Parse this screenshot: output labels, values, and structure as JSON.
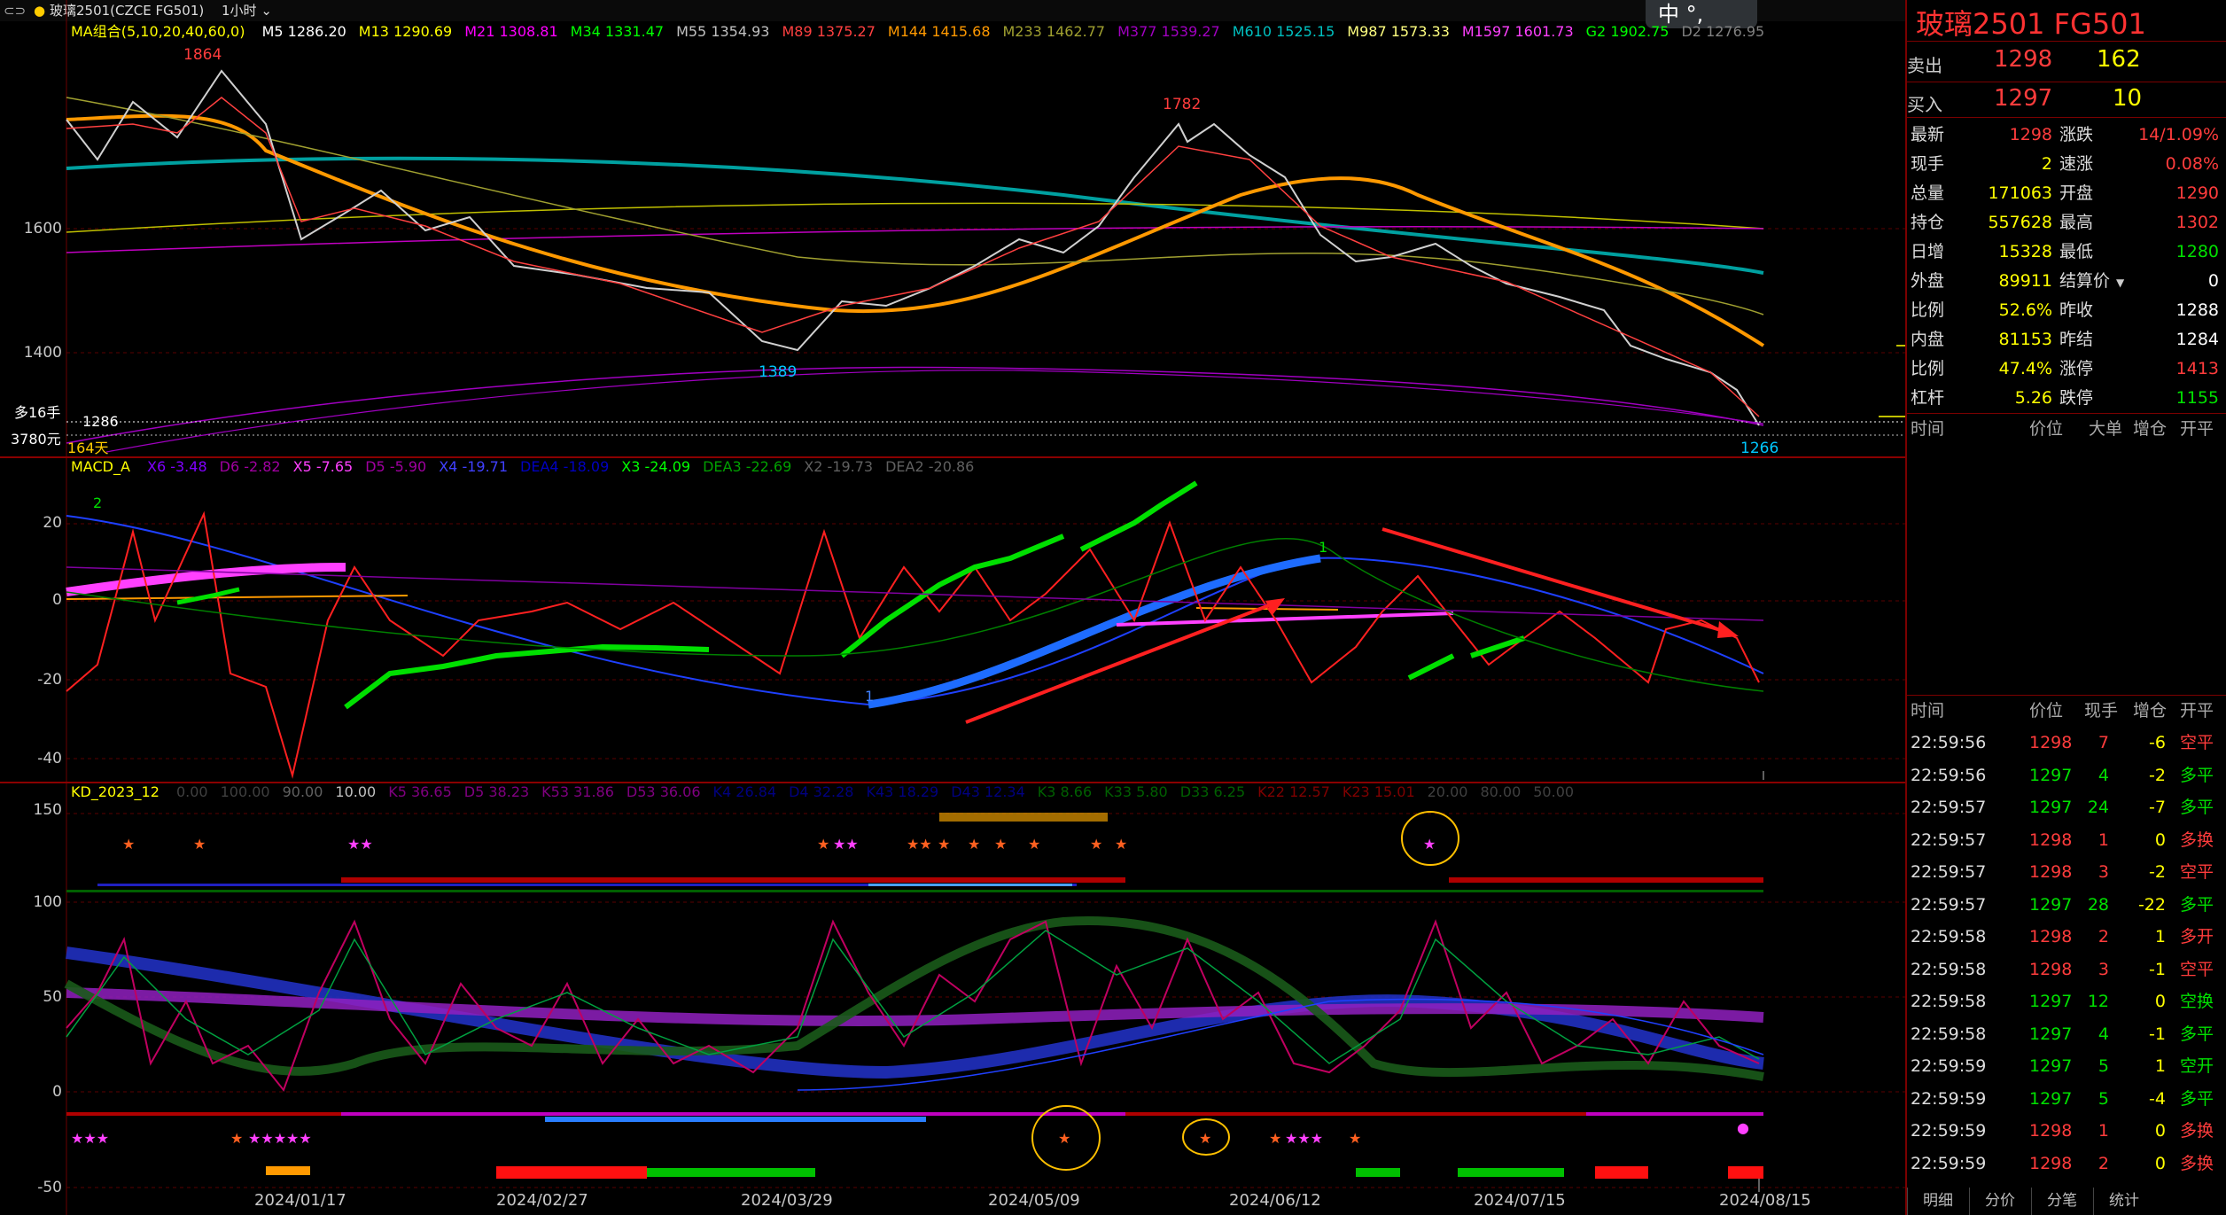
{
  "topbar": {
    "symbol_full": "玻璃2501(CZCE FG501)",
    "period": "1小时",
    "ime_label": "中 °,"
  },
  "ma_legend": {
    "name": "MA组合(5,10,20,40,60,0)",
    "items": [
      {
        "label": "M5 1286.20",
        "color": "#ffffff"
      },
      {
        "label": "M13 1290.69",
        "color": "#ffff00"
      },
      {
        "label": "M21 1308.81",
        "color": "#ff00ff"
      },
      {
        "label": "M34 1331.47",
        "color": "#00ff00"
      },
      {
        "label": "M55 1354.93",
        "color": "#c0c0c0"
      },
      {
        "label": "M89 1375.27",
        "color": "#ff4040"
      },
      {
        "label": "M144 1415.68",
        "color": "#ff9900"
      },
      {
        "label": "M233 1462.77",
        "color": "#a0a030"
      },
      {
        "label": "M377 1539.27",
        "color": "#a000c0"
      },
      {
        "label": "M610 1525.15",
        "color": "#00c0c0"
      },
      {
        "label": "M987 1573.33",
        "color": "#ffff80"
      },
      {
        "label": "M1597 1601.73",
        "color": "#ff40ff"
      },
      {
        "label": "G2 1902.75",
        "color": "#00ff00"
      },
      {
        "label": "D2 1276.95",
        "color": "#808080"
      }
    ]
  },
  "price_panel": {
    "y_ticks": [
      "1600",
      "1400"
    ],
    "annotations": [
      "1864",
      "1782",
      "1389",
      "1266"
    ],
    "last_price_label": "1286",
    "position_label": "多16手",
    "pnl_label": "3780元",
    "days_label": "164天"
  },
  "macd_legend": {
    "name": "MACD_A",
    "items": [
      {
        "label": "X6 -3.48",
        "color": "#8000ff"
      },
      {
        "label": "D6 -2.82",
        "color": "#a000a0"
      },
      {
        "label": "X5 -7.65",
        "color": "#ff40ff"
      },
      {
        "label": "D5 -5.90",
        "color": "#a000a0"
      },
      {
        "label": "X4 -19.71",
        "color": "#4040ff"
      },
      {
        "label": "DEA4 -18.09",
        "color": "#0000c0"
      },
      {
        "label": "X3 -24.09",
        "color": "#00ff00"
      },
      {
        "label": "DEA3 -22.69",
        "color": "#00a000"
      },
      {
        "label": "X2 -19.73",
        "color": "#606060"
      },
      {
        "label": "DEA2 -20.86",
        "color": "#606060"
      }
    ],
    "y_ticks": [
      "20",
      "0",
      "-20",
      "-40"
    ],
    "marks": [
      "2",
      "1",
      "1"
    ]
  },
  "kd_legend": {
    "name": "KD_2023_12",
    "items": [
      {
        "label": "0.00",
        "color": "#404040"
      },
      {
        "label": "100.00",
        "color": "#404040"
      },
      {
        "label": "90.00",
        "color": "#606060"
      },
      {
        "label": "10.00",
        "color": "#c0c0c0"
      },
      {
        "label": "K5 36.65",
        "color": "#800080"
      },
      {
        "label": "D5 38.23",
        "color": "#800080"
      },
      {
        "label": "K53 31.86",
        "color": "#800080"
      },
      {
        "label": "D53 36.06",
        "color": "#800080"
      },
      {
        "label": "K4 26.84",
        "color": "#000080"
      },
      {
        "label": "D4 32.28",
        "color": "#000080"
      },
      {
        "label": "K43 18.29",
        "color": "#000080"
      },
      {
        "label": "D43 12.34",
        "color": "#000080"
      },
      {
        "label": "K3 8.66",
        "color": "#006000"
      },
      {
        "label": "K33 5.80",
        "color": "#006000"
      },
      {
        "label": "D33 6.25",
        "color": "#006000"
      },
      {
        "label": "K22 12.57",
        "color": "#800000"
      },
      {
        "label": "K23 15.01",
        "color": "#800000"
      },
      {
        "label": "20.00",
        "color": "#404040"
      },
      {
        "label": "80.00",
        "color": "#404040"
      },
      {
        "label": "50.00",
        "color": "#404040"
      }
    ],
    "y_ticks": [
      "150",
      "100",
      "50",
      "0",
      "-50"
    ]
  },
  "x_axis": [
    "2024/01/17",
    "2024/02/27",
    "2024/03/29",
    "2024/05/09",
    "2024/06/12",
    "2024/07/15",
    "2024/08/15"
  ],
  "quote": {
    "title": "玻璃2501  FG501",
    "sell_label": "卖出",
    "sell_price": "1298",
    "sell_vol": "162",
    "buy_label": "买入",
    "buy_price": "1297",
    "buy_vol": "10",
    "rows": [
      {
        "l1": "最新",
        "v1": "1298",
        "c1": "#ff3c3c",
        "l2": "涨跌",
        "v2": "14/1.09%",
        "c2": "#ff3c3c"
      },
      {
        "l1": "现手",
        "v1": "2",
        "c1": "#ffff00",
        "l2": "速涨",
        "v2": "0.08%",
        "c2": "#ff3c3c"
      },
      {
        "l1": "总量",
        "v1": "171063",
        "c1": "#ffff00",
        "l2": "开盘",
        "v2": "1290",
        "c2": "#ff3c3c"
      },
      {
        "l1": "持仓",
        "v1": "557628",
        "c1": "#ffff00",
        "l2": "最高",
        "v2": "1302",
        "c2": "#ff3c3c"
      },
      {
        "l1": "日增",
        "v1": "15328",
        "c1": "#ffff00",
        "l2": "最低",
        "v2": "1280",
        "c2": "#00e000"
      },
      {
        "l1": "外盘",
        "v1": "89911",
        "c1": "#ffff00",
        "l2": "结算价",
        "v2": "0",
        "c2": "#ffffff"
      },
      {
        "l1": "比例",
        "v1": "52.6%",
        "c1": "#ffff00",
        "l2": "昨收",
        "v2": "1288",
        "c2": "#ffffff"
      },
      {
        "l1": "内盘",
        "v1": "81153",
        "c1": "#ffff00",
        "l2": "昨结",
        "v2": "1284",
        "c2": "#ffffff"
      },
      {
        "l1": "比例",
        "v1": "47.4%",
        "c1": "#ffff00",
        "l2": "涨停",
        "v2": "1413",
        "c2": "#ff3c3c"
      },
      {
        "l1": "杠杆",
        "v1": "5.26",
        "c1": "#ffff00",
        "l2": "跌停",
        "v2": "1155",
        "c2": "#00e000"
      }
    ]
  },
  "bigorder_header": {
    "time": "时间",
    "price": "价位",
    "big": "大单",
    "inc": "增仓",
    "oc": "开平"
  },
  "tick_header": {
    "time": "时间",
    "price": "价位",
    "vol": "现手",
    "inc": "增仓",
    "oc": "开平"
  },
  "ticks": [
    {
      "time": "22:59:56",
      "price": "1298",
      "pc": "#ff3c3c",
      "vol": "7",
      "vc": "#ff3c3c",
      "inc": "-6",
      "oc": "空平"
    },
    {
      "time": "22:59:56",
      "price": "1297",
      "pc": "#00e000",
      "vol": "4",
      "vc": "#00e000",
      "inc": "-2",
      "oc": "多平"
    },
    {
      "time": "22:59:57",
      "price": "1297",
      "pc": "#00e000",
      "vol": "24",
      "vc": "#00e000",
      "inc": "-7",
      "oc": "多平"
    },
    {
      "time": "22:59:57",
      "price": "1298",
      "pc": "#ff3c3c",
      "vol": "1",
      "vc": "#ff3c3c",
      "inc": "0",
      "oc": "多换"
    },
    {
      "time": "22:59:57",
      "price": "1298",
      "pc": "#ff3c3c",
      "vol": "3",
      "vc": "#ff3c3c",
      "inc": "-2",
      "oc": "空平"
    },
    {
      "time": "22:59:57",
      "price": "1297",
      "pc": "#00e000",
      "vol": "28",
      "vc": "#00e000",
      "inc": "-22",
      "oc": "多平"
    },
    {
      "time": "22:59:58",
      "price": "1298",
      "pc": "#ff3c3c",
      "vol": "2",
      "vc": "#ff3c3c",
      "inc": "1",
      "oc": "多开"
    },
    {
      "time": "22:59:58",
      "price": "1298",
      "pc": "#ff3c3c",
      "vol": "3",
      "vc": "#ff3c3c",
      "inc": "-1",
      "oc": "空平"
    },
    {
      "time": "22:59:58",
      "price": "1297",
      "pc": "#00e000",
      "vol": "12",
      "vc": "#00e000",
      "inc": "0",
      "oc": "空换"
    },
    {
      "time": "22:59:58",
      "price": "1297",
      "pc": "#00e000",
      "vol": "4",
      "vc": "#00e000",
      "inc": "-1",
      "oc": "多平"
    },
    {
      "time": "22:59:59",
      "price": "1297",
      "pc": "#00e000",
      "vol": "5",
      "vc": "#00e000",
      "inc": "1",
      "oc": "空开"
    },
    {
      "time": "22:59:59",
      "price": "1297",
      "pc": "#00e000",
      "vol": "5",
      "vc": "#00e000",
      "inc": "-4",
      "oc": "多平"
    },
    {
      "time": "22:59:59",
      "price": "1298",
      "pc": "#ff3c3c",
      "vol": "1",
      "vc": "#ff3c3c",
      "inc": "0",
      "oc": "多换"
    },
    {
      "time": "22:59:59",
      "price": "1298",
      "pc": "#ff3c3c",
      "vol": "2",
      "vc": "#ff3c3c",
      "inc": "0",
      "oc": "多换"
    }
  ],
  "tabs": [
    "明细",
    "分价",
    "分笔",
    "统计"
  ]
}
